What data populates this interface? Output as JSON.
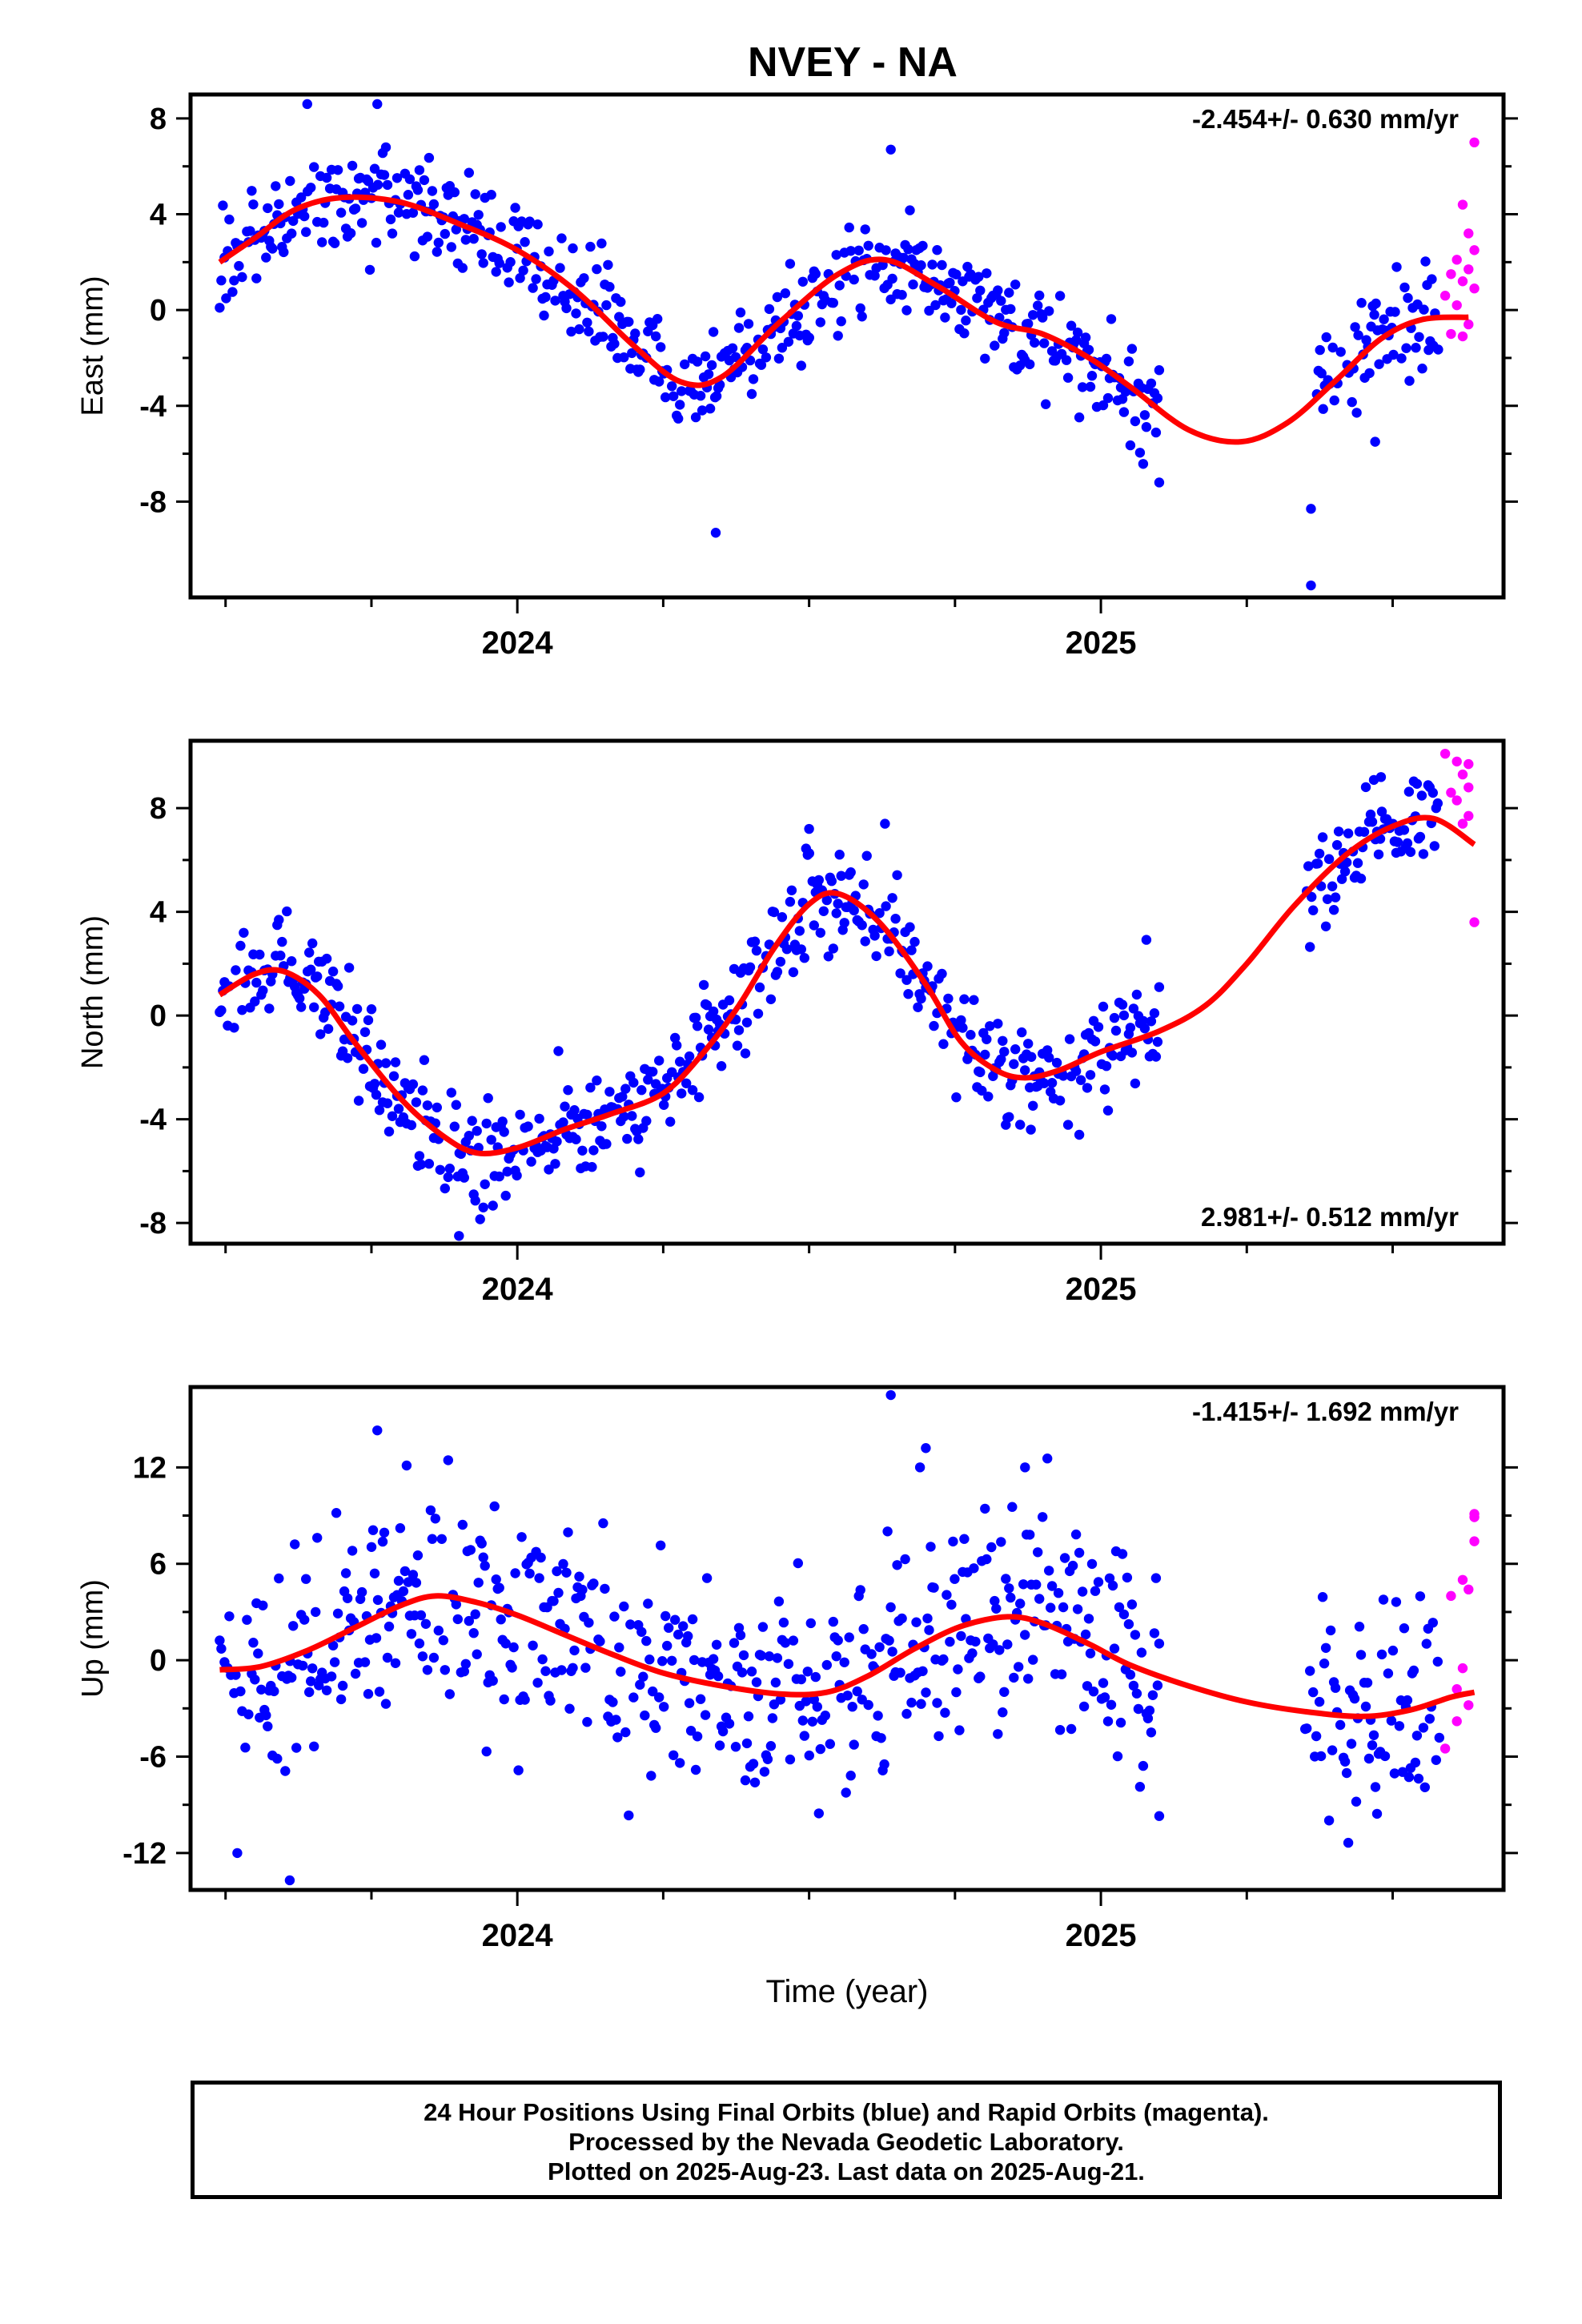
{
  "title": "NVEY - NA",
  "xlabel": "Time (year)",
  "footer": [
    "24 Hour Positions Using Final Orbits (blue) and Rapid Orbits (magenta).",
    "Processed by the Nevada Geodetic Laboratory.",
    "Plotted on 2025-Aug-23. Last data on 2025-Aug-21."
  ],
  "colors": {
    "final": "#0000ff",
    "rapid": "#ff00ff",
    "model": "#ff0000"
  },
  "chart_data": [
    {
      "type": "scatter",
      "ylabel": "East (mm)",
      "rate": "-2.454+/- 0.630 mm/yr",
      "xlim": [
        2023.44,
        2025.69
      ],
      "ylim": [
        -12,
        9
      ],
      "yticks": [
        8,
        4,
        0,
        -4,
        -8
      ],
      "xtick_labels": [
        "2024",
        "2025"
      ],
      "model": [
        [
          2023.49,
          2.0
        ],
        [
          2023.55,
          3.0
        ],
        [
          2023.62,
          4.2
        ],
        [
          2023.7,
          4.7
        ],
        [
          2023.8,
          4.5
        ],
        [
          2023.9,
          3.6
        ],
        [
          2024.0,
          2.5
        ],
        [
          2024.1,
          0.8
        ],
        [
          2024.2,
          -1.5
        ],
        [
          2024.28,
          -3.0
        ],
        [
          2024.35,
          -2.8
        ],
        [
          2024.45,
          -0.5
        ],
        [
          2024.55,
          1.5
        ],
        [
          2024.63,
          2.1
        ],
        [
          2024.72,
          1.0
        ],
        [
          2024.82,
          -0.5
        ],
        [
          2024.9,
          -1.0
        ],
        [
          2024.98,
          -2.0
        ],
        [
          2025.05,
          -3.2
        ],
        [
          2025.15,
          -5.0
        ],
        [
          2025.24,
          -5.5
        ],
        [
          2025.32,
          -4.7
        ],
        [
          2025.4,
          -3.0
        ],
        [
          2025.48,
          -1.2
        ],
        [
          2025.55,
          -0.4
        ],
        [
          2025.63,
          -0.3
        ]
      ],
      "final_segments": [
        [
          2023.49,
          2025.1
        ],
        [
          2025.37,
          2025.58
        ]
      ],
      "rapid": [
        [
          2025.59,
          0.6
        ],
        [
          2025.6,
          1.5
        ],
        [
          2025.6,
          -1.0
        ],
        [
          2025.61,
          2.1
        ],
        [
          2025.61,
          0.2
        ],
        [
          2025.62,
          4.4
        ],
        [
          2025.62,
          1.2
        ],
        [
          2025.62,
          -1.1
        ],
        [
          2025.63,
          3.2
        ],
        [
          2025.63,
          1.7
        ],
        [
          2025.63,
          -0.6
        ],
        [
          2025.64,
          7.0
        ],
        [
          2025.64,
          2.5
        ],
        [
          2025.64,
          0.9
        ]
      ],
      "outliers": [
        [
          2023.64,
          8.6
        ],
        [
          2023.76,
          8.6
        ],
        [
          2024.34,
          -9.3
        ],
        [
          2024.64,
          6.7
        ],
        [
          2025.1,
          -7.2
        ],
        [
          2025.36,
          -11.5
        ],
        [
          2025.36,
          -8.3
        ],
        [
          2025.47,
          -5.5
        ]
      ]
    },
    {
      "type": "scatter",
      "ylabel": "North (mm)",
      "rate": "2.981+/- 0.512 mm/yr",
      "xlim": [
        2023.44,
        2025.69
      ],
      "ylim": [
        -8.8,
        10.6
      ],
      "yticks": [
        8,
        4,
        0,
        -4,
        -8
      ],
      "xtick_labels": [
        "2024",
        "2025"
      ],
      "model": [
        [
          2023.49,
          0.8
        ],
        [
          2023.55,
          1.6
        ],
        [
          2023.6,
          1.7
        ],
        [
          2023.66,
          0.8
        ],
        [
          2023.72,
          -1.0
        ],
        [
          2023.8,
          -3.2
        ],
        [
          2023.87,
          -4.6
        ],
        [
          2023.93,
          -5.3
        ],
        [
          2024.0,
          -5.1
        ],
        [
          2024.08,
          -4.4
        ],
        [
          2024.16,
          -3.8
        ],
        [
          2024.25,
          -3.0
        ],
        [
          2024.32,
          -1.4
        ],
        [
          2024.38,
          0.4
        ],
        [
          2024.44,
          2.6
        ],
        [
          2024.5,
          4.3
        ],
        [
          2024.55,
          4.7
        ],
        [
          2024.62,
          3.6
        ],
        [
          2024.7,
          1.2
        ],
        [
          2024.76,
          -1.0
        ],
        [
          2024.82,
          -2.1
        ],
        [
          2024.87,
          -2.4
        ],
        [
          2024.93,
          -2.1
        ],
        [
          2025.0,
          -1.4
        ],
        [
          2025.1,
          -0.6
        ],
        [
          2025.18,
          0.4
        ],
        [
          2025.25,
          2.0
        ],
        [
          2025.33,
          4.2
        ],
        [
          2025.42,
          6.2
        ],
        [
          2025.5,
          7.3
        ],
        [
          2025.57,
          7.6
        ],
        [
          2025.64,
          6.6
        ]
      ],
      "final_segments": [
        [
          2023.49,
          2025.1
        ],
        [
          2025.35,
          2025.58
        ]
      ],
      "rapid": [
        [
          2025.59,
          10.1
        ],
        [
          2025.6,
          8.6
        ],
        [
          2025.61,
          9.8
        ],
        [
          2025.61,
          8.3
        ],
        [
          2025.62,
          7.4
        ],
        [
          2025.62,
          9.3
        ],
        [
          2025.63,
          8.8
        ],
        [
          2025.63,
          9.7
        ],
        [
          2025.63,
          7.7
        ],
        [
          2025.64,
          3.6
        ]
      ],
      "outliers": [
        [
          2023.9,
          -8.5
        ],
        [
          2024.5,
          7.2
        ],
        [
          2024.63,
          7.4
        ],
        [
          2024.88,
          -4.4
        ],
        [
          2025.48,
          9.2
        ]
      ]
    },
    {
      "type": "scatter",
      "ylabel": "Up (mm)",
      "rate": "-1.415+/- 1.692 mm/yr",
      "xlim": [
        2023.44,
        2025.69
      ],
      "ylim": [
        -14.3,
        17
      ],
      "yticks": [
        12,
        6,
        0,
        -6,
        -12
      ],
      "xtick_labels": [
        "2024",
        "2025"
      ],
      "model": [
        [
          2023.49,
          -0.6
        ],
        [
          2023.56,
          -0.4
        ],
        [
          2023.64,
          0.6
        ],
        [
          2023.72,
          2.0
        ],
        [
          2023.8,
          3.4
        ],
        [
          2023.86,
          4.0
        ],
        [
          2023.93,
          3.6
        ],
        [
          2024.0,
          2.8
        ],
        [
          2024.08,
          1.6
        ],
        [
          2024.16,
          0.4
        ],
        [
          2024.25,
          -0.8
        ],
        [
          2024.35,
          -1.6
        ],
        [
          2024.45,
          -2.1
        ],
        [
          2024.53,
          -2.0
        ],
        [
          2024.6,
          -1.0
        ],
        [
          2024.68,
          0.7
        ],
        [
          2024.76,
          2.1
        ],
        [
          2024.84,
          2.7
        ],
        [
          2024.9,
          2.3
        ],
        [
          2024.98,
          1.0
        ],
        [
          2025.05,
          -0.3
        ],
        [
          2025.15,
          -1.6
        ],
        [
          2025.25,
          -2.6
        ],
        [
          2025.35,
          -3.2
        ],
        [
          2025.45,
          -3.5
        ],
        [
          2025.53,
          -3.1
        ],
        [
          2025.6,
          -2.3
        ],
        [
          2025.64,
          -2.0
        ]
      ],
      "final_segments": [
        [
          2023.49,
          2025.1
        ],
        [
          2025.35,
          2025.58
        ]
      ],
      "rapid": [
        [
          2025.59,
          -5.5
        ],
        [
          2025.6,
          4.0
        ],
        [
          2025.61,
          -3.8
        ],
        [
          2025.61,
          -1.8
        ],
        [
          2025.62,
          5.0
        ],
        [
          2025.62,
          -0.5
        ],
        [
          2025.63,
          -2.8
        ],
        [
          2025.63,
          4.4
        ],
        [
          2025.64,
          8.9
        ],
        [
          2025.64,
          7.4
        ],
        [
          2025.64,
          9.1
        ]
      ],
      "outliers": [
        [
          2023.61,
          -13.7
        ],
        [
          2023.76,
          14.3
        ],
        [
          2024.64,
          16.5
        ],
        [
          2024.69,
          12.0
        ],
        [
          2024.7,
          13.2
        ],
        [
          2024.87,
          12.0
        ],
        [
          2025.1,
          -9.7
        ]
      ]
    }
  ]
}
